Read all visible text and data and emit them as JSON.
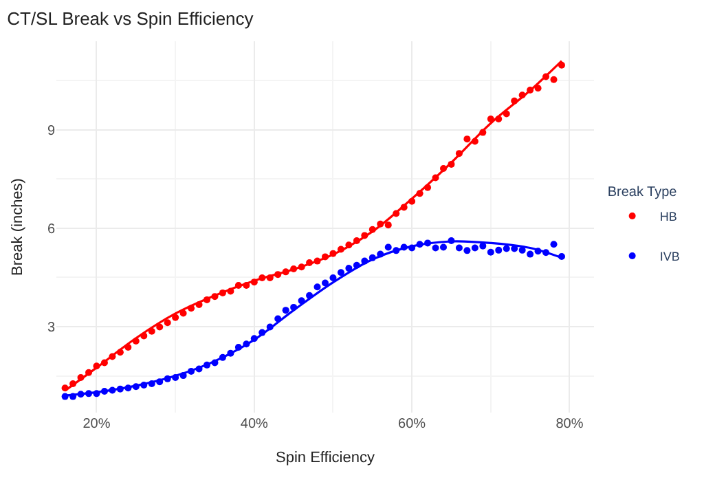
{
  "chart_data": {
    "type": "scatter",
    "title": "CT/SL Break vs Spin Efficiency",
    "xlabel": "Spin Efficiency",
    "ylabel": "Break (inches)",
    "legend_title": "Break Type",
    "x": [
      0.16,
      0.17,
      0.18,
      0.19,
      0.2,
      0.21,
      0.22,
      0.23,
      0.24,
      0.25,
      0.26,
      0.27,
      0.28,
      0.29,
      0.3,
      0.31,
      0.32,
      0.33,
      0.34,
      0.35,
      0.36,
      0.37,
      0.38,
      0.39,
      0.4,
      0.41,
      0.42,
      0.43,
      0.44,
      0.45,
      0.46,
      0.47,
      0.48,
      0.49,
      0.5,
      0.51,
      0.52,
      0.53,
      0.54,
      0.55,
      0.56,
      0.57,
      0.58,
      0.59,
      0.6,
      0.61,
      0.62,
      0.63,
      0.64,
      0.65,
      0.66,
      0.67,
      0.68,
      0.69,
      0.7,
      0.71,
      0.72,
      0.73,
      0.74,
      0.75,
      0.76,
      0.77,
      0.78,
      0.79
    ],
    "series": [
      {
        "name": "HB",
        "color": "#ff0000",
        "values": [
          1.13,
          1.26,
          1.45,
          1.6,
          1.8,
          1.9,
          2.09,
          2.22,
          2.37,
          2.56,
          2.72,
          2.86,
          2.99,
          3.12,
          3.28,
          3.41,
          3.56,
          3.67,
          3.82,
          3.92,
          4.03,
          4.08,
          4.26,
          4.26,
          4.36,
          4.49,
          4.49,
          4.59,
          4.67,
          4.76,
          4.82,
          4.95,
          5.0,
          5.13,
          5.23,
          5.36,
          5.49,
          5.62,
          5.78,
          5.96,
          6.13,
          6.1,
          6.45,
          6.64,
          6.82,
          7.06,
          7.24,
          7.54,
          7.82,
          7.95,
          8.28,
          8.72,
          8.65,
          8.92,
          9.33,
          9.33,
          9.49,
          9.88,
          10.06,
          10.21,
          10.27,
          10.62,
          10.53,
          10.97
        ]
      },
      {
        "type": "line",
        "marker": "none",
        "color": "#ff0000",
        "x": [
          0.16,
          0.2,
          0.25,
          0.3,
          0.35,
          0.4,
          0.45,
          0.5,
          0.55,
          0.6,
          0.65,
          0.7,
          0.75,
          0.79
        ],
        "values": [
          1.05,
          1.75,
          2.65,
          3.4,
          3.95,
          4.4,
          4.75,
          5.2,
          5.9,
          6.9,
          8.0,
          9.2,
          10.2,
          11.1
        ]
      },
      {
        "name": "IVB",
        "color": "#0000ff",
        "values": [
          0.87,
          0.87,
          0.94,
          0.96,
          0.96,
          1.03,
          1.06,
          1.1,
          1.13,
          1.17,
          1.22,
          1.26,
          1.32,
          1.41,
          1.45,
          1.51,
          1.64,
          1.71,
          1.83,
          1.9,
          2.06,
          2.19,
          2.37,
          2.47,
          2.64,
          2.82,
          2.99,
          3.24,
          3.5,
          3.59,
          3.79,
          3.95,
          4.21,
          4.33,
          4.49,
          4.65,
          4.78,
          4.87,
          5.0,
          5.1,
          5.21,
          5.42,
          5.32,
          5.42,
          5.4,
          5.51,
          5.55,
          5.4,
          5.42,
          5.62,
          5.4,
          5.32,
          5.4,
          5.46,
          5.27,
          5.33,
          5.38,
          5.38,
          5.33,
          5.21,
          5.3,
          5.26,
          5.51,
          5.14
        ]
      },
      {
        "type": "line",
        "marker": "none",
        "color": "#0000ff",
        "x": [
          0.16,
          0.2,
          0.25,
          0.3,
          0.35,
          0.4,
          0.45,
          0.5,
          0.55,
          0.6,
          0.65,
          0.7,
          0.75,
          0.79
        ],
        "values": [
          0.9,
          1.0,
          1.2,
          1.5,
          1.95,
          2.6,
          3.5,
          4.35,
          5.05,
          5.45,
          5.6,
          5.55,
          5.4,
          5.1
        ]
      }
    ],
    "xlim": [
      0.149,
      0.831
    ],
    "xticks": [
      {
        "value": 0.2,
        "label": "20%"
      },
      {
        "value": 0.4,
        "label": "40%"
      },
      {
        "value": 0.6,
        "label": "60%"
      },
      {
        "value": 0.8,
        "label": "80%"
      }
    ],
    "ylim": [
      0.38,
      11.7
    ],
    "yticks": [
      3,
      6,
      9
    ],
    "grid": true,
    "legend": "right",
    "marker": "circle"
  }
}
